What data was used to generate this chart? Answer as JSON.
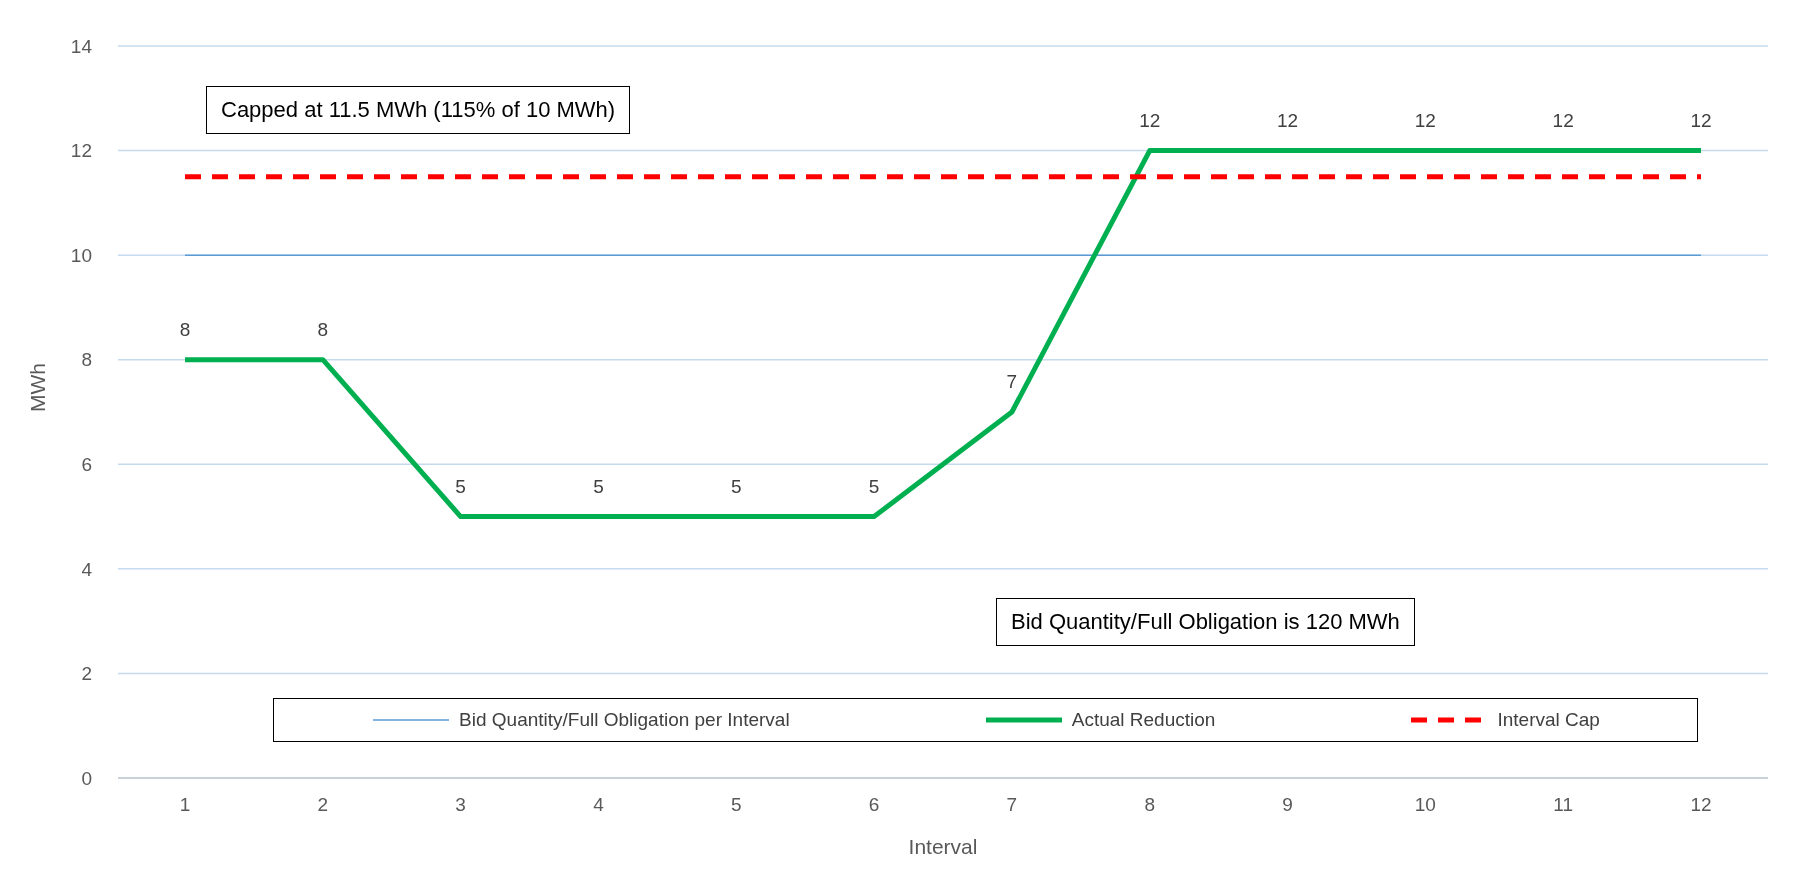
{
  "chart_data": {
    "type": "line",
    "xlabel": "Interval",
    "ylabel": "MWh",
    "categories": [
      "1",
      "2",
      "3",
      "4",
      "5",
      "6",
      "7",
      "8",
      "9",
      "10",
      "11",
      "12"
    ],
    "series": [
      {
        "name": "Bid Quantity/Full Obligation per Interval",
        "color": "#5b9bd5",
        "line_style": "solid",
        "values": [
          10,
          10,
          10,
          10,
          10,
          10,
          10,
          10,
          10,
          10,
          10,
          10
        ]
      },
      {
        "name": "Actual Reduction",
        "color": "#00b050",
        "line_style": "solid",
        "values": [
          8,
          8,
          5,
          5,
          5,
          5,
          7,
          12,
          12,
          12,
          12,
          12
        ],
        "value_labels": [
          "8",
          "8",
          "5",
          "5",
          "5",
          "5",
          "7",
          "12",
          "12",
          "12",
          "12",
          "12"
        ]
      },
      {
        "name": "Interval Cap",
        "color": "#ff0000",
        "line_style": "dashed",
        "values": [
          11.5,
          11.5,
          11.5,
          11.5,
          11.5,
          11.5,
          11.5,
          11.5,
          11.5,
          11.5,
          11.5,
          11.5
        ]
      }
    ],
    "ylim": [
      0,
      14
    ],
    "yticks": [
      0,
      2,
      4,
      6,
      8,
      10,
      12,
      14
    ],
    "grid": "y",
    "legend": "bottom",
    "marker": "none",
    "annotations": [
      "Capped at 11.5 MWh (115% of 10 MWh)",
      "Bid Quantity/Full Obligation is 120 MWh"
    ]
  }
}
